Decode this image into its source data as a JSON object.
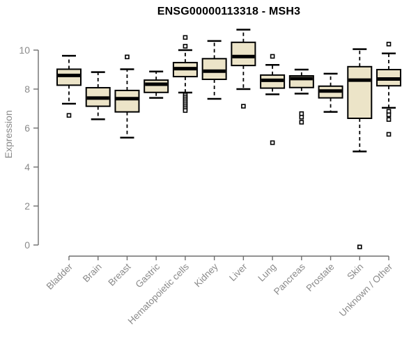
{
  "chart_data": {
    "type": "boxplot",
    "title": "ENSG00000113318 - MSH3",
    "xlabel": "",
    "ylabel": "Expression",
    "ylim": [
      0,
      11.2
    ],
    "yticks": [
      0,
      2,
      4,
      6,
      8,
      10
    ],
    "grid": false,
    "legend": "none",
    "categories": [
      "Bladder",
      "Brain",
      "Breast",
      "Gastric",
      "Hematopoietic cells",
      "Kidney",
      "Liver",
      "Lung",
      "Pancreas",
      "Prostate",
      "Skin",
      "Unknown / Other"
    ],
    "series": [
      {
        "category": "Bladder",
        "whisker_low": 7.25,
        "q1": 8.2,
        "median": 8.7,
        "q3": 9.02,
        "whisker_high": 9.71,
        "outliers": [
          6.65
        ]
      },
      {
        "category": "Brain",
        "whisker_low": 6.45,
        "q1": 7.12,
        "median": 7.54,
        "q3": 8.07,
        "whisker_high": 8.87,
        "outliers": []
      },
      {
        "category": "Breast",
        "whisker_low": 5.51,
        "q1": 6.83,
        "median": 7.51,
        "q3": 7.93,
        "whisker_high": 9.02,
        "outliers": [
          9.65
        ]
      },
      {
        "category": "Gastric",
        "whisker_low": 7.55,
        "q1": 7.83,
        "median": 8.25,
        "q3": 8.46,
        "whisker_high": 8.9,
        "outliers": []
      },
      {
        "category": "Hematopoietic cells",
        "whisker_low": 7.82,
        "q1": 8.64,
        "median": 9.05,
        "q3": 9.36,
        "whisker_high": 10.0,
        "outliers": [
          10.65,
          10.2,
          7.7,
          7.6,
          7.5,
          7.4,
          7.3,
          7.2,
          7.1,
          7.0,
          6.9
        ]
      },
      {
        "category": "Kidney",
        "whisker_low": 7.5,
        "q1": 8.5,
        "median": 8.92,
        "q3": 9.56,
        "whisker_high": 10.47,
        "outliers": []
      },
      {
        "category": "Liver",
        "whisker_low": 8.0,
        "q1": 9.21,
        "median": 9.67,
        "q3": 10.4,
        "whisker_high": 11.05,
        "outliers": [
          7.12
        ]
      },
      {
        "category": "Lung",
        "whisker_low": 7.73,
        "q1": 8.05,
        "median": 8.45,
        "q3": 8.72,
        "whisker_high": 9.24,
        "outliers": [
          9.68,
          5.25
        ]
      },
      {
        "category": "Pancreas",
        "whisker_low": 7.77,
        "q1": 8.08,
        "median": 8.54,
        "q3": 8.68,
        "whisker_high": 9.0,
        "outliers": [
          6.74,
          6.56,
          6.3
        ]
      },
      {
        "category": "Prostate",
        "whisker_low": 6.83,
        "q1": 7.55,
        "median": 7.9,
        "q3": 8.15,
        "whisker_high": 8.79,
        "outliers": []
      },
      {
        "category": "Skin",
        "whisker_low": 4.8,
        "q1": 6.5,
        "median": 8.46,
        "q3": 9.15,
        "whisker_high": 10.05,
        "outliers": [
          -0.1
        ]
      },
      {
        "category": "Unknown / Other",
        "whisker_low": 7.04,
        "q1": 8.17,
        "median": 8.52,
        "q3": 9.0,
        "whisker_high": 9.83,
        "outliers": [
          10.31,
          6.86,
          6.68,
          6.44,
          5.68
        ]
      }
    ],
    "colors": {
      "box_fill": "#ECE4C8",
      "box_stroke": "#000000",
      "median": "#000000",
      "outlier_fill": "#ffffff",
      "outlier_stroke": "#000000",
      "axis_line": "#6e6e6e",
      "tick_label": "#8a8a8a",
      "title": "#000000"
    }
  }
}
